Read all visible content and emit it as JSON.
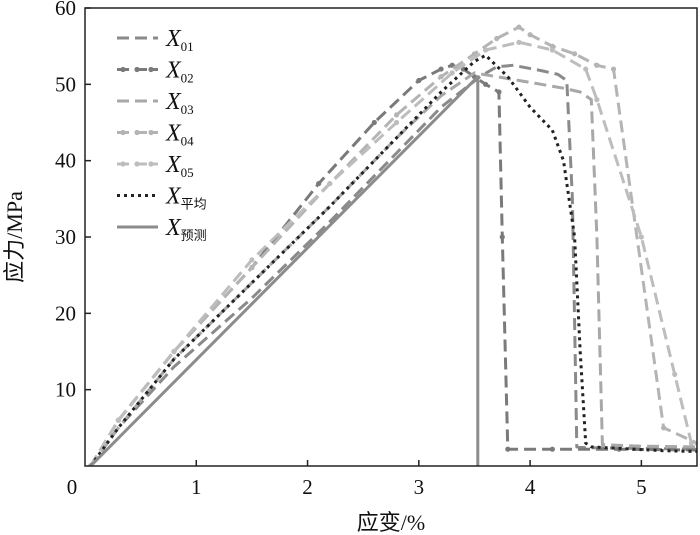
{
  "chart_data": {
    "type": "line",
    "xlabel": "应变/%",
    "ylabel": "应力/MPa",
    "xlim": [
      0,
      5.5
    ],
    "ylim": [
      0,
      60
    ],
    "xticks": [
      "0",
      "1",
      "2",
      "3",
      "4",
      "5"
    ],
    "yticks": [
      "10",
      "20",
      "30",
      "40",
      "50",
      "60"
    ],
    "grid": false,
    "legend_position": "top-left",
    "series": [
      {
        "name": "X",
        "subscript": "01",
        "color": "#8a8a8a",
        "style": "dashed",
        "markers": false,
        "x": [
          0.05,
          0.3,
          0.8,
          1.5,
          2.2,
          2.8,
          3.2,
          3.55,
          3.7,
          3.85,
          4.1,
          4.25,
          4.33,
          4.38,
          4.42,
          4.5,
          5.0,
          5.5
        ],
        "y": [
          0,
          5,
          13,
          22,
          32,
          41,
          47,
          51,
          52.3,
          52.5,
          51.8,
          51.3,
          50.5,
          35,
          2.5,
          2.4,
          2.3,
          2.2
        ]
      },
      {
        "name": "X",
        "subscript": "02",
        "color": "#7a7a7a",
        "style": "dashed",
        "markers": true,
        "x": [
          0.05,
          0.3,
          0.8,
          1.5,
          2.1,
          2.6,
          3.0,
          3.2,
          3.3,
          3.4,
          3.5,
          3.6,
          3.72,
          3.75,
          3.8,
          4.2,
          4.8,
          5.5
        ],
        "y": [
          0,
          6,
          15,
          26,
          37,
          45,
          50.5,
          52,
          52.5,
          52,
          51,
          50,
          49,
          30,
          2.2,
          2.2,
          2.2,
          2.1
        ]
      },
      {
        "name": "X",
        "subscript": "03",
        "color": "#a8a8a8",
        "style": "dashed",
        "markers": false,
        "x": [
          0.05,
          0.3,
          0.8,
          1.5,
          2.2,
          2.8,
          3.2,
          3.5,
          3.7,
          3.9,
          4.1,
          4.3,
          4.45,
          4.55,
          4.6,
          4.65,
          5.0,
          5.5
        ],
        "y": [
          0,
          5,
          14,
          24,
          34,
          43,
          48.5,
          51.5,
          51,
          50.5,
          50,
          49.5,
          49,
          48,
          30,
          2.8,
          2.6,
          2.5
        ]
      },
      {
        "name": "X",
        "subscript": "04",
        "color": "#b4b4b4",
        "style": "dashed",
        "markers": true,
        "x": [
          0.05,
          0.3,
          0.8,
          1.5,
          2.2,
          2.8,
          3.2,
          3.5,
          3.7,
          3.9,
          4.0,
          4.2,
          4.4,
          4.6,
          4.75,
          5.2,
          5.5
        ],
        "y": [
          0,
          6,
          15,
          26,
          37,
          46,
          51,
          54,
          56,
          57.5,
          56.5,
          55,
          54,
          52.5,
          52,
          5,
          3
        ]
      },
      {
        "name": "X",
        "subscript": "05",
        "color": "#bdbdbd",
        "style": "dashed",
        "markers": true,
        "x": [
          0.05,
          0.3,
          0.8,
          1.5,
          2.2,
          2.8,
          3.3,
          3.6,
          3.9,
          4.2,
          4.5,
          4.6,
          5.0,
          5.3,
          5.45
        ],
        "y": [
          0,
          6,
          15,
          27,
          37,
          45,
          51.5,
          54.5,
          55.5,
          54.5,
          52,
          48,
          30,
          12,
          3
        ]
      },
      {
        "name": "X",
        "subscript": "平均",
        "color": "#222222",
        "style": "dotted",
        "markers": false,
        "x": [
          0.05,
          0.3,
          0.8,
          1.5,
          2.2,
          2.8,
          3.2,
          3.5,
          3.6,
          3.8,
          4.0,
          4.2,
          4.3,
          4.4,
          4.45,
          4.5,
          4.55,
          4.8,
          5.2,
          5.5
        ],
        "y": [
          0,
          5,
          14,
          24,
          34,
          43,
          49,
          53,
          53.8,
          51,
          47,
          44,
          40,
          30,
          15,
          3,
          2.5,
          2.3,
          2.0,
          1.9
        ]
      },
      {
        "name": "X",
        "subscript": "预测",
        "color": "#8c8c8c",
        "style": "solid",
        "markers": false,
        "x": [
          0.05,
          3.53,
          3.53
        ],
        "y": [
          0,
          51,
          0
        ]
      }
    ]
  }
}
